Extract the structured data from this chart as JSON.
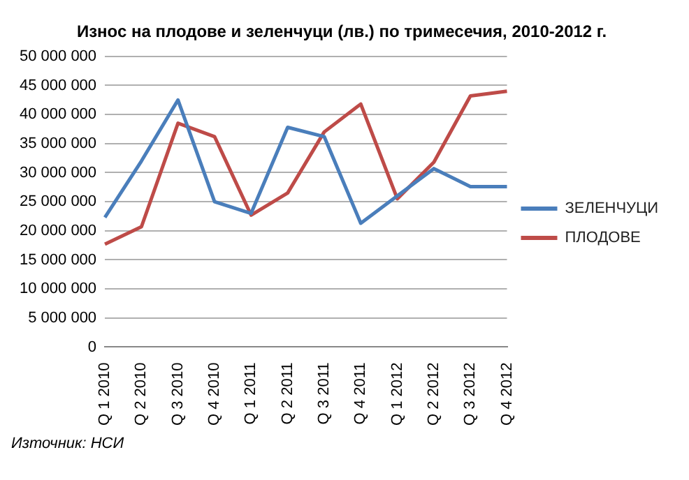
{
  "chart_data": {
    "type": "line",
    "title": "Износ на плодове и зеленчуци (лв.) по тримесечия, 2010-2012 г.",
    "categories": [
      "Q 1 2010",
      "Q 2 2010",
      "Q 3 2010",
      "Q 4 2010",
      "Q 1 2011",
      "Q 2 2011",
      "Q 3 2011",
      "Q 4 2011",
      "Q 1 2012",
      "Q 2 2012",
      "Q 3 2012",
      "Q 4 2012"
    ],
    "series": [
      {
        "name": "ЗЕЛЕНЧУЦИ",
        "color": "#4a7ebb",
        "values": [
          22300000,
          32000000,
          42500000,
          25000000,
          23000000,
          37800000,
          36200000,
          21300000,
          26000000,
          30700000,
          27600000,
          27600000
        ]
      },
      {
        "name": "ПЛОДОВЕ",
        "color": "#be4b48",
        "values": [
          17700000,
          20700000,
          38500000,
          36200000,
          22700000,
          26500000,
          37000000,
          41800000,
          25500000,
          31800000,
          43200000,
          44000000
        ]
      }
    ],
    "ylim": [
      0,
      50000000
    ],
    "yticks": [
      {
        "value": 0,
        "label": "0"
      },
      {
        "value": 5000000,
        "label": "5 000 000"
      },
      {
        "value": 10000000,
        "label": "10 000 000"
      },
      {
        "value": 15000000,
        "label": "15 000 000"
      },
      {
        "value": 20000000,
        "label": "20 000 000"
      },
      {
        "value": 25000000,
        "label": "25 000 000"
      },
      {
        "value": 30000000,
        "label": "30 000 000"
      },
      {
        "value": 35000000,
        "label": "35 000 000"
      },
      {
        "value": 40000000,
        "label": "40 000 000"
      },
      {
        "value": 45000000,
        "label": "45 000 000"
      },
      {
        "value": 50000000,
        "label": "50 000 000"
      }
    ],
    "grid": "y",
    "legend": "right",
    "marker": "none",
    "line_style": "solid",
    "annotations": [
      "Източник: НСИ"
    ]
  }
}
